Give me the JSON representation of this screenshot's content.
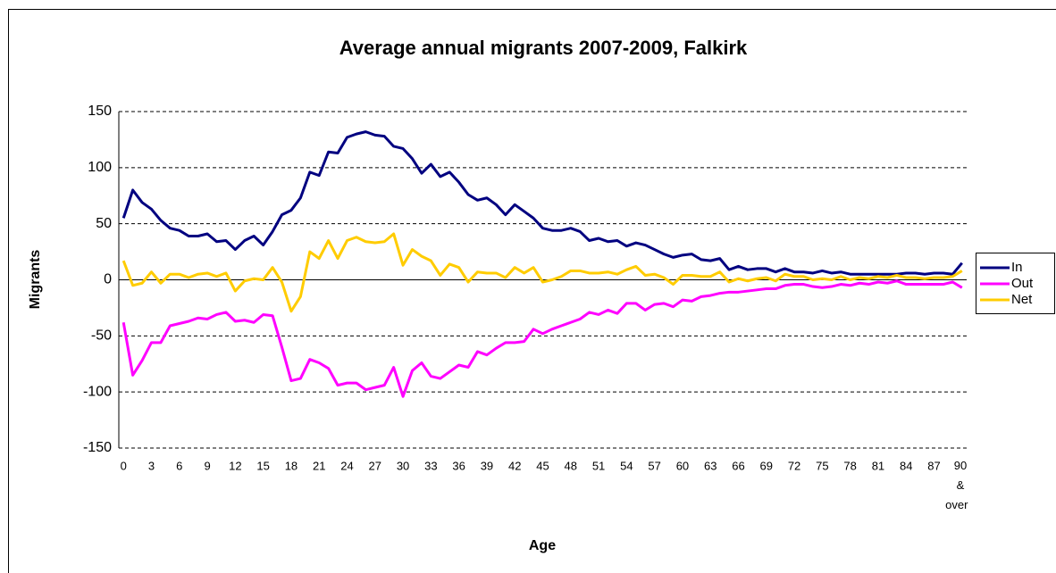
{
  "chart_data": {
    "type": "line",
    "title": "Average annual migrants 2007-2009, Falkirk",
    "x_label": "Age",
    "y_label": "Migrants",
    "categories": [
      "0",
      null,
      null,
      "3",
      null,
      null,
      "6",
      null,
      null,
      "9",
      null,
      null,
      "12",
      null,
      null,
      "15",
      null,
      null,
      "18",
      null,
      null,
      "21",
      null,
      null,
      "24",
      null,
      null,
      "27",
      null,
      null,
      "30",
      null,
      null,
      "33",
      null,
      null,
      "36",
      null,
      null,
      "39",
      null,
      null,
      "42",
      null,
      null,
      "45",
      null,
      null,
      "48",
      null,
      null,
      "51",
      null,
      null,
      "54",
      null,
      null,
      "57",
      null,
      null,
      "60",
      null,
      null,
      "63",
      null,
      null,
      "66",
      null,
      null,
      "69",
      null,
      null,
      "72",
      null,
      null,
      "75",
      null,
      null,
      "78",
      null,
      null,
      "81",
      null,
      null,
      "84",
      null,
      null,
      "87",
      null,
      null,
      "90 & over"
    ],
    "series": [
      {
        "name": "In",
        "color": "#000080",
        "values": [
          55,
          80,
          69,
          63,
          53,
          46,
          44,
          39,
          39,
          41,
          34,
          35,
          27,
          35,
          39,
          31,
          43,
          58,
          62,
          73,
          96,
          93,
          114,
          113,
          127,
          130,
          132,
          129,
          128,
          119,
          117,
          108,
          95,
          103,
          92,
          96,
          87,
          76,
          71,
          73,
          67,
          58,
          67,
          61,
          55,
          46,
          44,
          44,
          46,
          43,
          35,
          37,
          34,
          35,
          30,
          33,
          31,
          27,
          23,
          20,
          22,
          23,
          18,
          17,
          19,
          9,
          12,
          9,
          10,
          10,
          7,
          10,
          7,
          7,
          6,
          8,
          6,
          7,
          5,
          5,
          5,
          5,
          5,
          5,
          6,
          6,
          5,
          6,
          6,
          5,
          15
        ]
      },
      {
        "name": "Out",
        "color": "#ff00ff",
        "values": [
          -38,
          -85,
          -72,
          -56,
          -56,
          -41,
          -39,
          -37,
          -34,
          -35,
          -31,
          -29,
          -37,
          -36,
          -38,
          -31,
          -32,
          -60,
          -90,
          -88,
          -71,
          -74,
          -79,
          -94,
          -92,
          -92,
          -98,
          -96,
          -94,
          -78,
          -104,
          -81,
          -74,
          -86,
          -88,
          -82,
          -76,
          -78,
          -64,
          -67,
          -61,
          -56,
          -56,
          -55,
          -44,
          -48,
          -44,
          -41,
          -38,
          -35,
          -29,
          -31,
          -27,
          -30,
          -21,
          -21,
          -27,
          -22,
          -21,
          -24,
          -18,
          -19,
          -15,
          -14,
          -12,
          -11,
          -11,
          -10,
          -9,
          -8,
          -8,
          -5,
          -4,
          -4,
          -6,
          -7,
          -6,
          -4,
          -5,
          -3,
          -4,
          -2,
          -3,
          -1,
          -4,
          -4,
          -4,
          -4,
          -4,
          -2,
          -7
        ]
      },
      {
        "name": "Net",
        "color": "#ffcc00",
        "values": [
          17,
          -5,
          -3,
          7,
          -3,
          5,
          5,
          2,
          5,
          6,
          3,
          6,
          -10,
          -1,
          1,
          0,
          11,
          -2,
          -28,
          -15,
          25,
          19,
          35,
          19,
          35,
          38,
          34,
          33,
          34,
          41,
          13,
          27,
          21,
          17,
          4,
          14,
          11,
          -2,
          7,
          6,
          6,
          2,
          11,
          6,
          11,
          -2,
          0,
          3,
          8,
          8,
          6,
          6,
          7,
          5,
          9,
          12,
          4,
          5,
          2,
          -4,
          4,
          4,
          3,
          3,
          7,
          -2,
          1,
          -1,
          1,
          2,
          -1,
          5,
          3,
          3,
          0,
          1,
          0,
          3,
          0,
          2,
          1,
          3,
          2,
          4,
          2,
          2,
          1,
          2,
          2,
          3,
          8
        ]
      }
    ],
    "ylim": [
      -150,
      150
    ],
    "yticks": [
      -150,
      -100,
      -50,
      0,
      50,
      100,
      150
    ],
    "grid": true,
    "legend": "right"
  }
}
